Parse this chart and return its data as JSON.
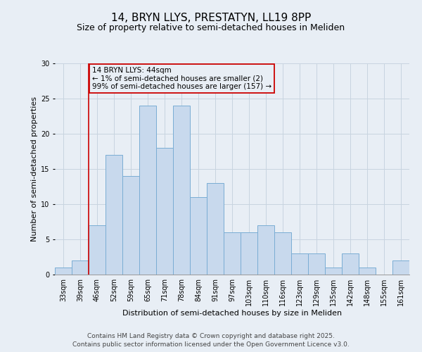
{
  "title1": "14, BRYN LLYS, PRESTATYN, LL19 8PP",
  "title2": "Size of property relative to semi-detached houses in Meliden",
  "xlabel": "Distribution of semi-detached houses by size in Meliden",
  "ylabel": "Number of semi-detached properties",
  "categories": [
    "33sqm",
    "39sqm",
    "46sqm",
    "52sqm",
    "59sqm",
    "65sqm",
    "71sqm",
    "78sqm",
    "84sqm",
    "91sqm",
    "97sqm",
    "103sqm",
    "110sqm",
    "116sqm",
    "123sqm",
    "129sqm",
    "135sqm",
    "142sqm",
    "148sqm",
    "155sqm",
    "161sqm"
  ],
  "values": [
    1,
    2,
    7,
    17,
    14,
    24,
    18,
    24,
    11,
    13,
    6,
    6,
    7,
    6,
    3,
    3,
    1,
    3,
    1,
    0,
    2
  ],
  "bar_color": "#c8d9ed",
  "bar_edge_color": "#7aadd4",
  "grid_color": "#c8d4e0",
  "background_color": "#e8eef5",
  "vline_x_index": 2,
  "vline_color": "#cc0000",
  "annotation_text": "14 BRYN LLYS: 44sqm\n← 1% of semi-detached houses are smaller (2)\n99% of semi-detached houses are larger (157) →",
  "annotation_box_color": "#cc0000",
  "ylim": [
    0,
    30
  ],
  "yticks": [
    0,
    5,
    10,
    15,
    20,
    25,
    30
  ],
  "footer": "Contains HM Land Registry data © Crown copyright and database right 2025.\nContains public sector information licensed under the Open Government Licence v3.0.",
  "title_fontsize": 11,
  "subtitle_fontsize": 9,
  "axis_label_fontsize": 8,
  "tick_fontsize": 7,
  "footer_fontsize": 6.5,
  "annotation_fontsize": 7.5
}
